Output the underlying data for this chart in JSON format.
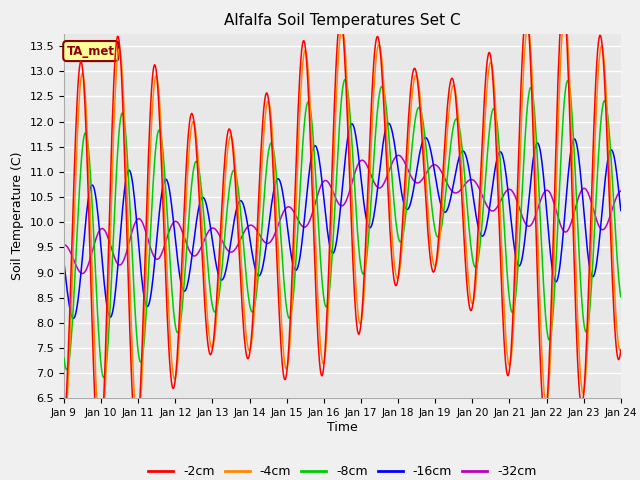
{
  "title": "Alfalfa Soil Temperatures Set C",
  "ylabel": "Soil Temperature (C)",
  "xlabel": "Time",
  "ylim": [
    6.5,
    13.75
  ],
  "yticks": [
    6.5,
    7.0,
    7.5,
    8.0,
    8.5,
    9.0,
    9.5,
    10.0,
    10.5,
    11.0,
    11.5,
    12.0,
    12.5,
    13.0,
    13.5
  ],
  "colors": {
    "-2cm": "#ff0000",
    "-4cm": "#ff8800",
    "-8cm": "#00cc00",
    "-16cm": "#0000ff",
    "-32cm": "#bb00bb"
  },
  "legend_label": "TA_met",
  "legend_facecolor": "#ffff99",
  "legend_edgecolor": "#8B0000",
  "legend_textcolor": "#8B0000",
  "bg_color": "#e8e8e8",
  "grid_color": "#ffffff",
  "x_labels": [
    "Jan 9",
    "Jan 10",
    "Jan 11",
    "Jan 12",
    "Jan 13",
    "Jan 14",
    "Jan 15",
    "Jan 16",
    "Jan 17",
    "Jan 18",
    "Jan 19",
    "Jan 20",
    "Jan 21",
    "Jan 22",
    "Jan 23",
    "Jan 24"
  ],
  "n_points": 720,
  "num_days": 15
}
